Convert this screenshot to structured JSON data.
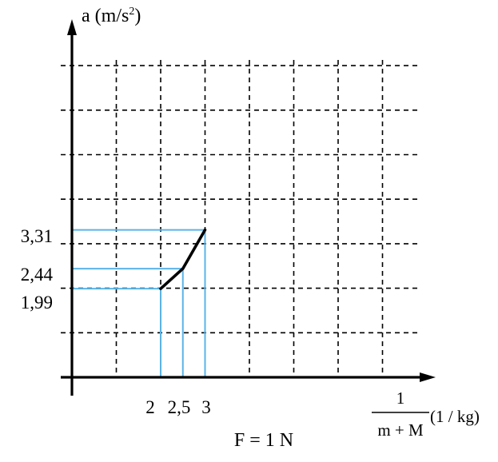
{
  "chart_data": {
    "type": "line",
    "title": "",
    "ylabel": "a (m/s²)",
    "ylabel_parts": {
      "base": "a (m/s",
      "sup": "2",
      "close": ")"
    },
    "xlabel": "1/(m + M) (1 / kg)",
    "xlabel_parts": {
      "numerator": "1",
      "denominator": "m + M",
      "unit": "(1 / kg)"
    },
    "annotation": "F = 1 N",
    "grid": true,
    "xlim": [
      0,
      7.1
    ],
    "ylim": [
      0,
      6.8
    ],
    "x_tick_labels": [
      "2",
      "2,5",
      "3"
    ],
    "y_tick_labels": [
      "3,31",
      "2,44",
      "1,99"
    ],
    "series": [
      {
        "x": [
          2,
          2.5,
          3
        ],
        "y": [
          1.99,
          2.44,
          3.31
        ],
        "color": "#000000"
      }
    ],
    "guide_color": "#5ab4e8"
  }
}
